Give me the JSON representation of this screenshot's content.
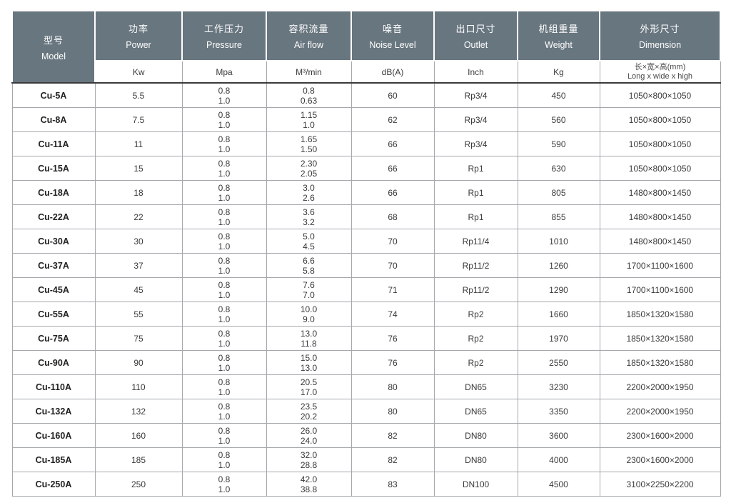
{
  "table": {
    "columns": [
      {
        "cn": "型号",
        "en": "Model",
        "unit": ""
      },
      {
        "cn": "功率",
        "en": "Power",
        "unit": "Kw"
      },
      {
        "cn": "工作压力",
        "en": "Pressure",
        "unit": "Mpa"
      },
      {
        "cn": "容积流量",
        "en": "Air flow",
        "unit": "M³/min"
      },
      {
        "cn": "噪音",
        "en": "Noise Level",
        "unit": "dB(A)"
      },
      {
        "cn": "出口尺寸",
        "en": "Outlet",
        "unit": "Inch"
      },
      {
        "cn": "机组重量",
        "en": "Weight",
        "unit": "Kg"
      },
      {
        "cn": "外形尺寸",
        "en": "Dimension",
        "unit_line1": "长×宽×高(mm)",
        "unit_line2": "Long x wide x high"
      }
    ],
    "rows": [
      {
        "model": "Cu-5A",
        "power": "5.5",
        "pressure": [
          "0.8",
          "1.0"
        ],
        "airflow": [
          "0.8",
          "0.63"
        ],
        "noise": "60",
        "outlet": "Rp3/4",
        "weight": "450",
        "dimension": "1050×800×1050"
      },
      {
        "model": "Cu-8A",
        "power": "7.5",
        "pressure": [
          "0.8",
          "1.0"
        ],
        "airflow": [
          "1.15",
          "1.0"
        ],
        "noise": "62",
        "outlet": "Rp3/4",
        "weight": "560",
        "dimension": "1050×800×1050"
      },
      {
        "model": "Cu-11A",
        "power": "11",
        "pressure": [
          "0.8",
          "1.0"
        ],
        "airflow": [
          "1.65",
          "1.50"
        ],
        "noise": "66",
        "outlet": "Rp3/4",
        "weight": "590",
        "dimension": "1050×800×1050"
      },
      {
        "model": "Cu-15A",
        "power": "15",
        "pressure": [
          "0.8",
          "1.0"
        ],
        "airflow": [
          "2.30",
          "2.05"
        ],
        "noise": "66",
        "outlet": "Rp1",
        "weight": "630",
        "dimension": "1050×800×1050"
      },
      {
        "model": "Cu-18A",
        "power": "18",
        "pressure": [
          "0.8",
          "1.0"
        ],
        "airflow": [
          "3.0",
          "2.6"
        ],
        "noise": "66",
        "outlet": "Rp1",
        "weight": "805",
        "dimension": "1480×800×1450"
      },
      {
        "model": "Cu-22A",
        "power": "22",
        "pressure": [
          "0.8",
          "1.0"
        ],
        "airflow": [
          "3.6",
          "3.2"
        ],
        "noise": "68",
        "outlet": "Rp1",
        "weight": "855",
        "dimension": "1480×800×1450"
      },
      {
        "model": "Cu-30A",
        "power": "30",
        "pressure": [
          "0.8",
          "1.0"
        ],
        "airflow": [
          "5.0",
          "4.5"
        ],
        "noise": "70",
        "outlet": "Rp11/4",
        "weight": "1010",
        "dimension": "1480×800×1450"
      },
      {
        "model": "Cu-37A",
        "power": "37",
        "pressure": [
          "0.8",
          "1.0"
        ],
        "airflow": [
          "6.6",
          "5.8"
        ],
        "noise": "70",
        "outlet": "Rp11/2",
        "weight": "1260",
        "dimension": "1700×1100×1600"
      },
      {
        "model": "Cu-45A",
        "power": "45",
        "pressure": [
          "0.8",
          "1.0"
        ],
        "airflow": [
          "7.6",
          "7.0"
        ],
        "noise": "71",
        "outlet": "Rp11/2",
        "weight": "1290",
        "dimension": "1700×1100×1600"
      },
      {
        "model": "Cu-55A",
        "power": "55",
        "pressure": [
          "0.8",
          "1.0"
        ],
        "airflow": [
          "10.0",
          "9.0"
        ],
        "noise": "74",
        "outlet": "Rp2",
        "weight": "1660",
        "dimension": "1850×1320×1580"
      },
      {
        "model": "Cu-75A",
        "power": "75",
        "pressure": [
          "0.8",
          "1.0"
        ],
        "airflow": [
          "13.0",
          "11.8"
        ],
        "noise": "76",
        "outlet": "Rp2",
        "weight": "1970",
        "dimension": "1850×1320×1580"
      },
      {
        "model": "Cu-90A",
        "power": "90",
        "pressure": [
          "0.8",
          "1.0"
        ],
        "airflow": [
          "15.0",
          "13.0"
        ],
        "noise": "76",
        "outlet": "Rp2",
        "weight": "2550",
        "dimension": "1850×1320×1580"
      },
      {
        "model": "Cu-110A",
        "power": "110",
        "pressure": [
          "0.8",
          "1.0"
        ],
        "airflow": [
          "20.5",
          "17.0"
        ],
        "noise": "80",
        "outlet": "DN65",
        "weight": "3230",
        "dimension": "2200×2000×1950"
      },
      {
        "model": "Cu-132A",
        "power": "132",
        "pressure": [
          "0.8",
          "1.0"
        ],
        "airflow": [
          "23.5",
          "20.2"
        ],
        "noise": "80",
        "outlet": "DN65",
        "weight": "3350",
        "dimension": "2200×2000×1950"
      },
      {
        "model": "Cu-160A",
        "power": "160",
        "pressure": [
          "0.8",
          "1.0"
        ],
        "airflow": [
          "26.0",
          "24.0"
        ],
        "noise": "82",
        "outlet": "DN80",
        "weight": "3600",
        "dimension": "2300×1600×2000"
      },
      {
        "model": "Cu-185A",
        "power": "185",
        "pressure": [
          "0.8",
          "1.0"
        ],
        "airflow": [
          "32.0",
          "28.8"
        ],
        "noise": "82",
        "outlet": "DN80",
        "weight": "4000",
        "dimension": "2300×1600×2000"
      },
      {
        "model": "Cu-250A",
        "power": "250",
        "pressure": [
          "0.8",
          "1.0"
        ],
        "airflow": [
          "42.0",
          "38.8"
        ],
        "noise": "83",
        "outlet": "DN100",
        "weight": "4500",
        "dimension": "3100×2250×2200"
      }
    ]
  },
  "colors": {
    "header_bg": "#68767f",
    "header_text": "#ffffff",
    "grid_border": "#a4a8ab",
    "dark_divider": "#3a3a3a",
    "body_text": "#3a3a3a"
  }
}
